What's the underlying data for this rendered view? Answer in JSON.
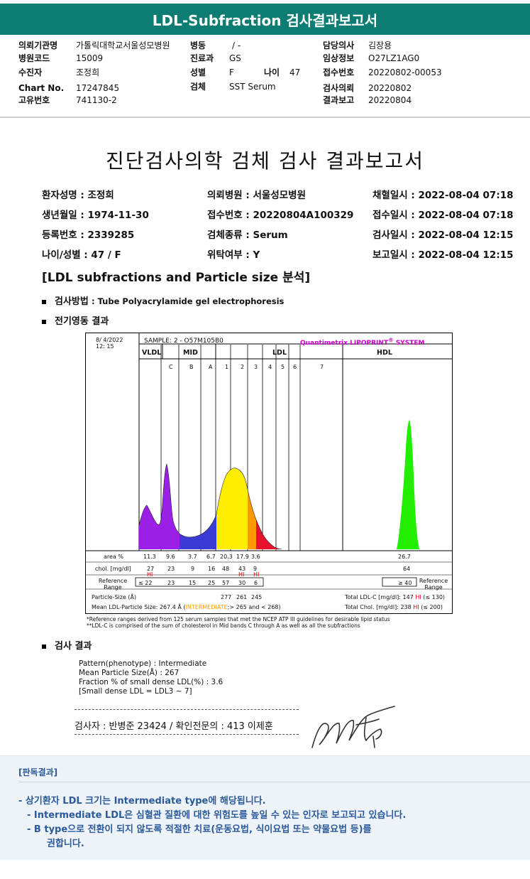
{
  "window_title": "LDL-Subfraction 검사결과보고서",
  "header": {
    "rows": [
      [
        {
          "label": "의뢰기관명",
          "value": "가톨릭대학교서울성모병원"
        },
        {
          "label": "병동",
          "value": "/ -"
        },
        {
          "label": "담당의사",
          "value": "김장용"
        }
      ],
      [
        {
          "label": "병원코드",
          "value": "15009"
        },
        {
          "label": "진료과",
          "value": "GS"
        },
        {
          "label": "임상정보",
          "value": "O27LZ1AG0"
        }
      ],
      [
        {
          "label": "수진자",
          "value": "조정희"
        },
        {
          "label": "성별",
          "value": "F"
        },
        {
          "label": "접수번호",
          "value": "20220802-00053"
        }
      ],
      [
        {
          "label": "Chart No.",
          "value": "17247845"
        },
        {
          "label": "검체",
          "value": "SST Serum"
        },
        {
          "label": "검사의뢰",
          "value": "20220802"
        }
      ],
      [
        {
          "label": "고유번호",
          "value": "741130-2"
        },
        {
          "label": "",
          "value": ""
        },
        {
          "label": "결과보고",
          "value": "20220804"
        }
      ]
    ],
    "age_label": "나이",
    "age_value": "47"
  },
  "report": {
    "title": "진단검사의학 검체 검사 결과보고서",
    "info": [
      [
        "환자성명 : 조정희",
        "의뢰병원 : 서울성모병원",
        "채혈일시 : 2022-08-04 07:18"
      ],
      [
        "생년월일 : 1974-11-30",
        "접수번호 : 20220804A100329",
        "접수일시 : 2022-08-04 07:18"
      ],
      [
        "등록번호 : 2339285",
        "검체종류 : Serum",
        "검사일시 : 2022-08-04 12:15"
      ],
      [
        "나이/성별 : 47 / F",
        "위탁여부 : Y",
        "보고일시 : 2022-08-04 12:15"
      ]
    ],
    "section": "[LDL subfractions and Particle size 분석]",
    "method_label": "검사방법",
    "method_value": ": Tube Polyacrylamide gel electrophoresis",
    "electro_label": "전기영동 결과",
    "result_label": "검사 결과",
    "results": [
      "Pattern(phenotype) : Intermediate",
      "Mean Particle Size(Å) : 267",
      "Fraction % of small dense LDL(%) : 3.6",
      "[Small dense LDL = LDL3 ~ 7]"
    ],
    "signature_line": "검사자 : 반병준  23424  /  확인전문의 : 413  이제훈"
  },
  "chart_data": {
    "type": "area",
    "date": "8/  4/2022",
    "time": "12: 15",
    "sample": "SAMPLE:  2 - O57M105B0",
    "brand": "Quantimetrix LIPOPRINT",
    "brand_sup": "®",
    "brand_tail": "SYSTEM",
    "groups": [
      "VLDL",
      "MID",
      "LDL",
      "HDL"
    ],
    "bands": [
      "C",
      "B",
      "A",
      "1",
      "2",
      "3",
      "4",
      "5",
      "6",
      "7"
    ],
    "row_labels": {
      "area": "area %",
      "chol": "chol. [mg/dl]",
      "ref": "Reference Range",
      "ref_right": "Reference Range",
      "psize": "Particle-Size (Å)",
      "mean": "Mean LDL-Particle Size:"
    },
    "area": [
      "11.3",
      "9.6",
      "3.7",
      "6.7",
      "20.3",
      "17.9",
      "3.6",
      "26.7"
    ],
    "chol": [
      "27",
      "23",
      "9",
      "16",
      "48",
      "43",
      "9",
      "64"
    ],
    "hi_flags": [
      "HI",
      "HI",
      "HI"
    ],
    "ref": [
      "≤ 22",
      "23",
      "15",
      "25",
      "57",
      "30",
      "6",
      "≥ 40"
    ],
    "psize": [
      "277",
      "261",
      "245"
    ],
    "mean_prefix": "267.4 Å",
    "mean_status": "INTERMEDIATE",
    "mean_suffix": ";> 265 and < 268)",
    "total_ldl_label": "Total LDL-C [mg/dl]:",
    "total_ldl_value": "147",
    "total_ldl_flag": "HI",
    "total_ldl_ref": "(≤ 130)",
    "total_chol_label": "Total Chol. [mg/dl]:",
    "total_chol_value": "238",
    "total_chol_flag": "HI",
    "total_chol_ref": "(≤ 200)",
    "footnote1": "*Reference ranges derived from 125 serum samples that met the NCEP ATP III guidelines for desirable lipid status",
    "footnote2": "**LDL-C is comprised of the sum of cholesterol in Mid bands C through A as well as all the subfractions",
    "colors": {
      "vldl": "#9b1fe6",
      "mid": "#3a3ad6",
      "ldl_yellow": "#ffee00",
      "ldl_orange": "#ff9900",
      "ldl_red": "#e8102a",
      "hdl": "#22ee00",
      "hi": "#e00000",
      "brand": "#c800c8",
      "status": "#ff9900"
    }
  },
  "verdict": {
    "title": "[판독결과]",
    "lines": [
      "-  상기환자 LDL 크기는 Intermediate type에 해당됩니다.",
      "-  Intermediate LDL은 심혈관 질환에 대한 위험도를 높일 수 있는 인자로 보고되고 있습니다.",
      "-  B type으로 전환이 되지 않도록 적절한 치료(운동요법, 식이요법 또는 약물요법 등)를",
      "권합니다."
    ]
  }
}
